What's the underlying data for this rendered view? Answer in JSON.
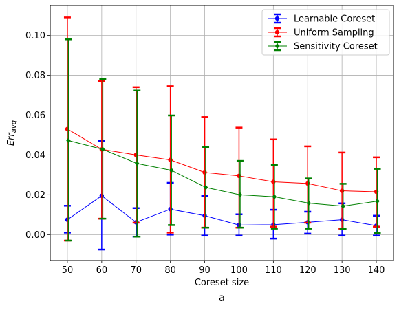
{
  "chart_data": {
    "type": "line",
    "xlabel": "Coreset size",
    "ylabel": "Err",
    "ylabel_sub": "avg",
    "panel_label": "a",
    "x": [
      50,
      60,
      70,
      80,
      90,
      100,
      110,
      120,
      130,
      140
    ],
    "xlim": [
      45,
      145
    ],
    "ylim": [
      -0.013,
      0.115
    ],
    "x_ticks": [
      "50",
      "60",
      "70",
      "80",
      "90",
      "100",
      "110",
      "120",
      "130",
      "140"
    ],
    "y_ticks": [
      {
        "value": 0.0,
        "label": "0.00"
      },
      {
        "value": 0.02,
        "label": "0.02"
      },
      {
        "value": 0.04,
        "label": "0.04"
      },
      {
        "value": 0.06,
        "label": "0.06"
      },
      {
        "value": 0.08,
        "label": "0.08"
      },
      {
        "value": 0.1,
        "label": "0.10"
      }
    ],
    "grid": true,
    "legend_position": "top-right",
    "series": [
      {
        "name": "Learnable Coreset",
        "color": "#0000ff",
        "marker": "circle",
        "x_offset": 0,
        "values": [
          0.0075,
          0.0195,
          0.0062,
          0.0128,
          0.0095,
          0.0048,
          0.005,
          0.0062,
          0.0075,
          0.0045
        ],
        "err_low": [
          0.001,
          -0.0075,
          -0.001,
          0.0,
          -0.0005,
          -0.0005,
          -0.002,
          0.0005,
          -0.0005,
          -0.0005
        ],
        "err_high": [
          0.0145,
          0.047,
          0.0133,
          0.026,
          0.0195,
          0.0102,
          0.0125,
          0.0115,
          0.0157,
          0.0095
        ]
      },
      {
        "name": "Uniform Sampling",
        "color": "#ff0000",
        "marker": "circle",
        "x_offset": 0,
        "values": [
          0.053,
          0.0428,
          0.04,
          0.0375,
          0.0312,
          0.0295,
          0.0265,
          0.0257,
          0.022,
          0.0215
        ],
        "err_low": [
          -0.003,
          0.008,
          0.006,
          0.001,
          0.0035,
          0.0035,
          0.004,
          0.006,
          0.003,
          0.004
        ],
        "err_high": [
          0.109,
          0.077,
          0.074,
          0.0745,
          0.059,
          0.0537,
          0.0478,
          0.0443,
          0.0412,
          0.0388
        ]
      },
      {
        "name": "Sensitivity Coreset",
        "color": "#008000",
        "marker": "diamond",
        "x_offset": 0.3,
        "values": [
          0.0472,
          0.0428,
          0.0357,
          0.0323,
          0.0237,
          0.02,
          0.019,
          0.0158,
          0.0143,
          0.0168
        ],
        "err_low": [
          -0.003,
          0.008,
          -0.001,
          0.0048,
          0.0035,
          0.0035,
          0.003,
          0.003,
          0.0028,
          0.0008
        ],
        "err_high": [
          0.098,
          0.078,
          0.0723,
          0.0598,
          0.044,
          0.037,
          0.035,
          0.0282,
          0.0255,
          0.033
        ]
      }
    ]
  }
}
